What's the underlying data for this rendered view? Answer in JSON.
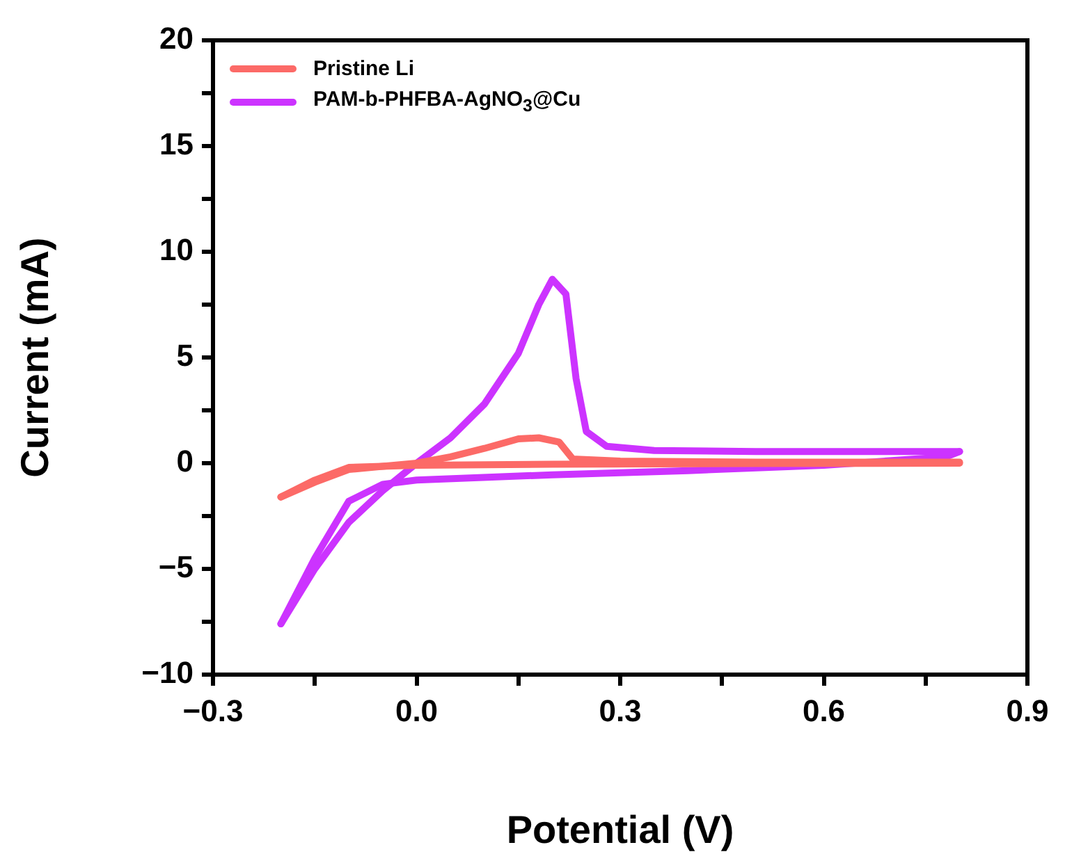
{
  "chart_data": {
    "type": "line",
    "xlabel": "Potential (V)",
    "ylabel": "Current (mA)",
    "xlim": [
      -0.3,
      0.9
    ],
    "xticks": [
      {
        "value": -0.3,
        "label": "−0.3"
      },
      {
        "value": -0.15,
        "label": null
      },
      {
        "value": 0,
        "label": "0.0"
      },
      {
        "value": 0.15,
        "label": null
      },
      0.3,
      {
        "value": 0.45,
        "label": null
      },
      0.6,
      {
        "value": 0.75,
        "label": null
      },
      0.9
    ],
    "ylim": [
      -10,
      20
    ],
    "yticks": [
      {
        "value": -10,
        "label": "−10"
      },
      {
        "value": -7.5,
        "label": null
      },
      {
        "value": -5,
        "label": "−5"
      },
      {
        "value": -2.5,
        "label": null
      },
      0,
      {
        "value": 2.5,
        "label": null
      },
      5,
      {
        "value": 7.5,
        "label": null
      },
      10,
      {
        "value": 12.5,
        "label": null
      },
      15,
      {
        "value": 17.5,
        "label": null
      },
      20
    ],
    "grid": false,
    "legend": "top left",
    "marker": "none",
    "line_style": "solid",
    "series": [
      {
        "name": "Pristine Li",
        "color": "#fc6a67",
        "x": [
          -0.2,
          -0.15,
          -0.1,
          -0.05,
          0,
          0.05,
          0.1,
          0.15,
          0.18,
          0.21,
          0.23,
          0.3,
          0.5,
          0.8
        ],
        "values": [
          -1.6,
          -0.9,
          -0.3,
          -0.15,
          0,
          0.3,
          0.7,
          1.15,
          1.2,
          1.0,
          0.2,
          0.1,
          0.05,
          0.05
        ]
      },
      {
        "color": "#fc6a67",
        "x": [
          0.8,
          0.5,
          0.2,
          0,
          -0.1,
          -0.15,
          -0.2
        ],
        "values": [
          0,
          -0.02,
          -0.05,
          -0.1,
          -0.2,
          -0.8,
          -1.6
        ]
      },
      {
        "name": "PAM-b-PHFBA-AgNO$_{3}$@Cu",
        "color": "#cc33ff",
        "x": [
          -0.2,
          -0.15,
          -0.1,
          -0.05,
          0,
          0.05,
          0.1,
          0.15,
          0.18,
          0.2,
          0.22,
          0.235,
          0.25,
          0.28,
          0.35,
          0.5,
          0.8
        ],
        "values": [
          -7.6,
          -5.0,
          -2.8,
          -1.3,
          0,
          1.2,
          2.8,
          5.2,
          7.5,
          8.7,
          8.0,
          4,
          1.5,
          0.8,
          0.6,
          0.55,
          0.55
        ]
      },
      {
        "color": "#cc33ff",
        "x": [
          0.8,
          0.78,
          0.6,
          0.4,
          0.2,
          0,
          -0.05,
          -0.1,
          -0.15,
          -0.2
        ],
        "values": [
          0.55,
          0.3,
          -0.1,
          -0.35,
          -0.55,
          -0.8,
          -1.0,
          -1.8,
          -4.5,
          -7.6
        ]
      }
    ]
  }
}
